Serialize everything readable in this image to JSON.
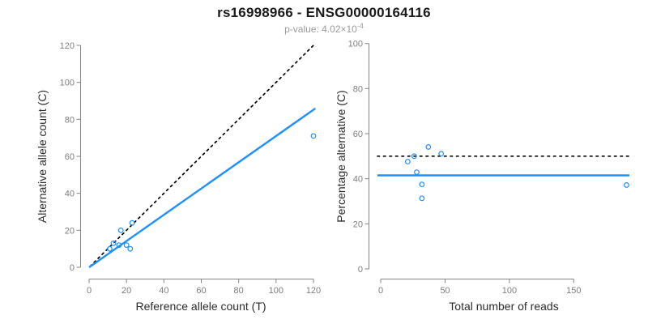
{
  "title": "rs16998966 - ENSG00000164116",
  "subtitle": {
    "base": "p-value: 4.02×10",
    "exponent": "-4"
  },
  "colors": {
    "accent_blue": "#1E90FF",
    "reference_line_black": "#000000",
    "axis_gray": "#858585",
    "tick_label_gray": "#7d7d7d",
    "axis_label_black": "#2b2b2b",
    "subtitle_gray": "#9a9a9a"
  },
  "chart_data": [
    {
      "type": "scatter",
      "panel": "left",
      "marker": "open-circle",
      "xlabel": "Reference allele count (T)",
      "ylabel": "Alternative allele count (C)",
      "xlim": [
        0,
        120
      ],
      "ylim": [
        0,
        120
      ],
      "xticks": [
        0,
        20,
        40,
        60,
        80,
        100,
        120
      ],
      "yticks": [
        0,
        20,
        40,
        60,
        80,
        100,
        120
      ],
      "grid": false,
      "points": [
        [
          11,
          10
        ],
        [
          13,
          13
        ],
        [
          16,
          12
        ],
        [
          20,
          12
        ],
        [
          22,
          10
        ],
        [
          17,
          20
        ],
        [
          23,
          24
        ],
        [
          120,
          71
        ]
      ],
      "identity_line": {
        "style": "dotted",
        "x1": 0.5,
        "y1": 0.5,
        "x2": 120,
        "y2": 120
      },
      "fit_line": {
        "style": "solid",
        "x1": 0,
        "y1": 0,
        "x2": 121,
        "y2": 85.9,
        "slope": 0.71
      }
    },
    {
      "type": "scatter",
      "panel": "right",
      "marker": "open-circle",
      "xlabel": "Total number of reads",
      "ylabel": "Percentage alternative (C)",
      "xlim": [
        0,
        192
      ],
      "ylim": [
        0,
        100
      ],
      "xticks": [
        0,
        50,
        100,
        150
      ],
      "yticks": [
        0,
        20,
        40,
        60,
        80,
        100
      ],
      "grid": false,
      "points": [
        [
          21,
          47.6
        ],
        [
          26,
          50.0
        ],
        [
          28,
          42.9
        ],
        [
          32,
          37.5
        ],
        [
          32,
          31.3
        ],
        [
          37,
          54.1
        ],
        [
          47,
          51.1
        ],
        [
          191,
          37.2
        ]
      ],
      "dotted_hline": 50,
      "solid_hline": 41.5
    }
  ]
}
